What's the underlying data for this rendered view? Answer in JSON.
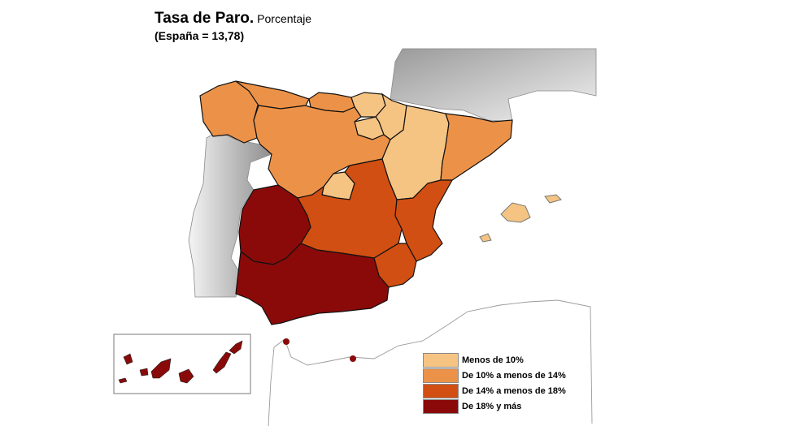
{
  "title": {
    "main": "Tasa de Paro.",
    "unit": "Porcentaje",
    "subtitle": "(España = 13,78)"
  },
  "legend": [
    {
      "label": "Menos de 10%",
      "color": "#f5c483"
    },
    {
      "label": "De 10% a menos de 14%",
      "color": "#ec9248"
    },
    {
      "label": "De 14% a menos de 18%",
      "color": "#d14f12"
    },
    {
      "label": "De 18% y más",
      "color": "#8a0a0a"
    }
  ],
  "regions": [
    {
      "name": "Galicia",
      "category": 1
    },
    {
      "name": "Asturias",
      "category": 1
    },
    {
      "name": "Cantabria",
      "category": 1
    },
    {
      "name": "País Vasco",
      "category": 0
    },
    {
      "name": "Navarra",
      "category": 0
    },
    {
      "name": "La Rioja",
      "category": 0
    },
    {
      "name": "Castilla y León",
      "category": 1
    },
    {
      "name": "Aragón",
      "category": 0
    },
    {
      "name": "Cataluña",
      "category": 1
    },
    {
      "name": "Madrid",
      "category": 0
    },
    {
      "name": "Castilla-La Mancha",
      "category": 2
    },
    {
      "name": "Comunidad Valenciana",
      "category": 2
    },
    {
      "name": "Región de Murcia",
      "category": 2
    },
    {
      "name": "Extremadura",
      "category": 3
    },
    {
      "name": "Andalucía",
      "category": 3
    },
    {
      "name": "Illes Balears",
      "category": 0
    },
    {
      "name": "Canarias",
      "category": 3
    },
    {
      "name": "Ceuta",
      "category": 3
    },
    {
      "name": "Melilla",
      "category": 3
    }
  ]
}
